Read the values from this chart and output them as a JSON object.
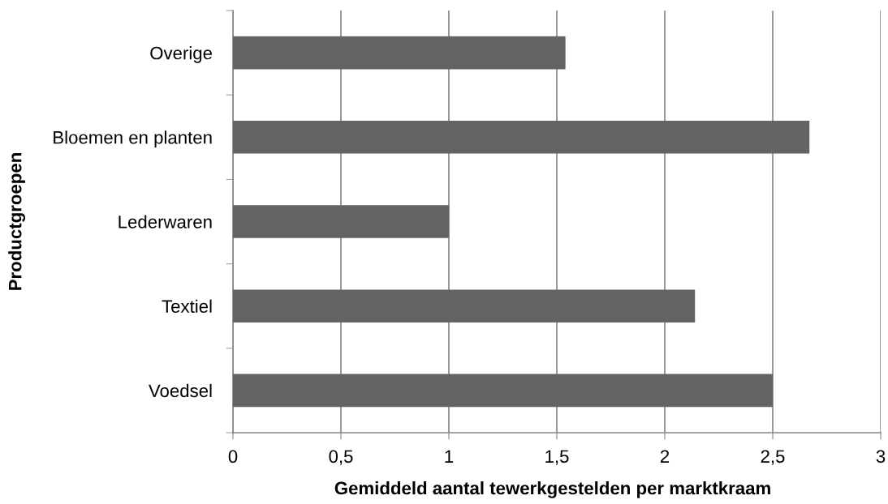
{
  "chart_data": {
    "type": "bar",
    "orientation": "horizontal",
    "categories": [
      "Overige",
      "Bloemen en planten",
      "Lederwaren",
      "Textiel",
      "Voedsel"
    ],
    "values": [
      1.54,
      2.67,
      1,
      2.14,
      2.5
    ],
    "color": "#636363",
    "xlim": [
      0,
      3
    ],
    "xticks": [
      0,
      {
        "value": 0.5,
        "label": "0,5"
      },
      1,
      {
        "value": 1.5,
        "label": "1,5"
      },
      2,
      {
        "value": 2.5,
        "label": "2,5"
      },
      3
    ],
    "grid": "x",
    "xlabel": "Gemiddeld aantal tewerkgestelden per marktkraam",
    "ylabel": "Productgroepen"
  }
}
